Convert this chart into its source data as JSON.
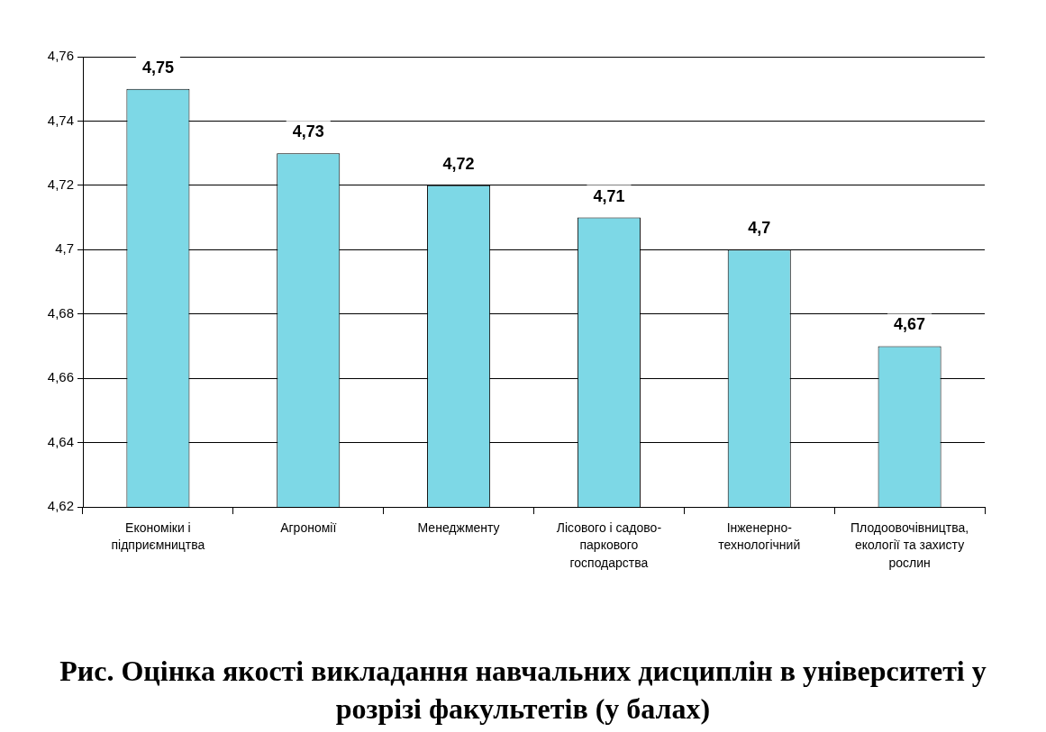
{
  "chart_data": {
    "type": "bar",
    "title": "Рис. Оцінка якості викладання навчальних дисциплін в університеті у розрізі факультетів (у балах)",
    "categories": [
      "Економіки і підприємництва",
      "Агрономії",
      "Менеджменту",
      "Лісового і садово-паркового господарства",
      "Інженерно-технологічний",
      "Плодоовочівництва, екології та захисту рослин"
    ],
    "values": [
      4.75,
      4.73,
      4.72,
      4.71,
      4.7,
      4.67
    ],
    "value_labels": [
      "4,75",
      "4,73",
      "4,72",
      "4,71",
      "4,7",
      "4,67"
    ],
    "color": "#7dd8e6",
    "ylim": [
      4.62,
      4.76
    ],
    "yticks": [
      {
        "value": 4.62,
        "label": "4,62"
      },
      {
        "value": 4.64,
        "label": "4,64"
      },
      {
        "value": 4.66,
        "label": "4,66"
      },
      {
        "value": 4.68,
        "label": "4,68"
      },
      {
        "value": 4.7,
        "label": "4,7"
      },
      {
        "value": 4.72,
        "label": "4,72"
      },
      {
        "value": 4.74,
        "label": "4,74"
      },
      {
        "value": 4.76,
        "label": "4,76"
      }
    ],
    "grid": "y"
  }
}
